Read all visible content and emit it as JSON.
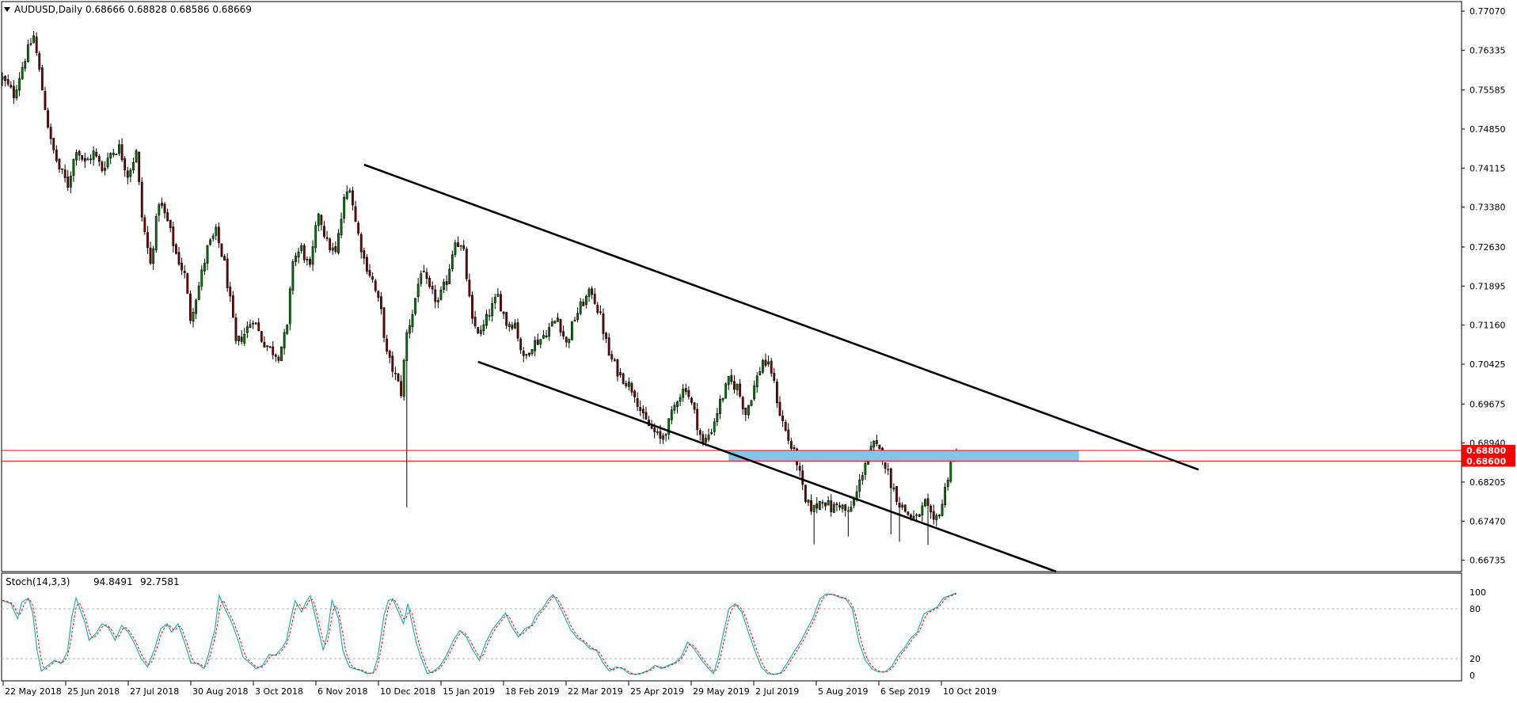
{
  "chart_data": {
    "type": "candlestick",
    "symbol_title": "AUDUSD,Daily",
    "ohlc_readout": "0.68666 0.68828 0.68586 0.68669",
    "price_ticks": [
      "0.77070",
      "0.76335",
      "0.75585",
      "0.74850",
      "0.74115",
      "0.73380",
      "0.72630",
      "0.71895",
      "0.71160",
      "0.70425",
      "0.69675",
      "0.68940",
      "0.68205",
      "0.67470",
      "0.66735"
    ],
    "price_tick_values": [
      0.7707,
      0.76335,
      0.75585,
      0.7485,
      0.74115,
      0.7338,
      0.7263,
      0.71895,
      0.7116,
      0.70425,
      0.69675,
      0.6894,
      0.68205,
      0.6747,
      0.66735
    ],
    "price_range": [
      0.6652,
      0.7725
    ],
    "date_labels": [
      "22 May 2018",
      "25 Jun 2018",
      "27 Jul 2018",
      "30 Aug 2018",
      "3 Oct 2018",
      "6 Nov 2018",
      "10 Dec 2018",
      "15 Jan 2019",
      "18 Feb 2019",
      "22 Mar 2019",
      "25 Apr 2019",
      "29 May 2019",
      "2 Jul 2019",
      "5 Aug 2019",
      "6 Sep 2019",
      "10 Oct 2019"
    ],
    "horizontal_levels": [
      {
        "label": "0.68800",
        "value": 0.688,
        "color": "#ff0000"
      },
      {
        "label": "0.68600",
        "value": 0.686,
        "color": "#ff0000"
      }
    ],
    "zone": {
      "from": 0.686,
      "to": 0.688,
      "color": "#87c3e8"
    },
    "trendlines": [
      {
        "name": "upper",
        "from": {
          "bar": 0,
          "price": 0.7418
        },
        "to": {
          "bar": 1,
          "price": 0.6844
        }
      },
      {
        "name": "lower",
        "from": {
          "bar": 0,
          "price": 0.7047
        },
        "to": {
          "bar": 1,
          "price": 0.6652
        }
      }
    ],
    "close_path": [
      [
        0,
        0.758
      ],
      [
        4,
        0.755
      ],
      [
        8,
        0.762
      ],
      [
        11,
        0.766
      ],
      [
        14,
        0.756
      ],
      [
        17,
        0.746
      ],
      [
        20,
        0.741
      ],
      [
        23,
        0.738
      ],
      [
        26,
        0.745
      ],
      [
        29,
        0.742
      ],
      [
        32,
        0.744
      ],
      [
        35,
        0.741
      ],
      [
        38,
        0.744
      ],
      [
        41,
        0.745
      ],
      [
        44,
        0.74
      ],
      [
        47,
        0.744
      ],
      [
        49,
        0.732
      ],
      [
        52,
        0.723
      ],
      [
        55,
        0.735
      ],
      [
        58,
        0.731
      ],
      [
        61,
        0.725
      ],
      [
        64,
        0.721
      ],
      [
        66,
        0.713
      ],
      [
        69,
        0.719
      ],
      [
        72,
        0.726
      ],
      [
        75,
        0.729
      ],
      [
        78,
        0.723
      ],
      [
        80,
        0.716
      ],
      [
        82,
        0.708
      ],
      [
        85,
        0.71
      ],
      [
        88,
        0.713
      ],
      [
        91,
        0.709
      ],
      [
        94,
        0.707
      ],
      [
        97,
        0.706
      ],
      [
        100,
        0.711
      ],
      [
        102,
        0.724
      ],
      [
        105,
        0.726
      ],
      [
        108,
        0.722
      ],
      [
        111,
        0.733
      ],
      [
        114,
        0.727
      ],
      [
        117,
        0.725
      ],
      [
        120,
        0.735
      ],
      [
        122,
        0.738
      ],
      [
        124,
        0.731
      ],
      [
        127,
        0.724
      ],
      [
        130,
        0.72
      ],
      [
        133,
        0.714
      ],
      [
        135,
        0.706
      ],
      [
        138,
        0.702
      ],
      [
        140,
        0.699
      ],
      [
        142,
        0.71
      ],
      [
        144,
        0.714
      ],
      [
        147,
        0.722
      ],
      [
        150,
        0.718
      ],
      [
        153,
        0.716
      ],
      [
        156,
        0.72
      ],
      [
        159,
        0.728
      ],
      [
        162,
        0.725
      ],
      [
        165,
        0.712
      ],
      [
        168,
        0.71
      ],
      [
        171,
        0.714
      ],
      [
        174,
        0.717
      ],
      [
        177,
        0.712
      ],
      [
        180,
        0.712
      ],
      [
        183,
        0.705
      ],
      [
        186,
        0.708
      ],
      [
        189,
        0.709
      ],
      [
        192,
        0.711
      ],
      [
        195,
        0.713
      ],
      [
        198,
        0.708
      ],
      [
        201,
        0.713
      ],
      [
        204,
        0.716
      ],
      [
        207,
        0.718
      ],
      [
        210,
        0.713
      ],
      [
        213,
        0.706
      ],
      [
        216,
        0.703
      ],
      [
        219,
        0.701
      ],
      [
        222,
        0.699
      ],
      [
        225,
        0.694
      ],
      [
        228,
        0.692
      ],
      [
        231,
        0.69
      ],
      [
        234,
        0.693
      ],
      [
        237,
        0.698
      ],
      [
        240,
        0.7
      ],
      [
        243,
        0.695
      ],
      [
        246,
        0.689
      ],
      [
        249,
        0.692
      ],
      [
        252,
        0.697
      ],
      [
        255,
        0.701
      ],
      [
        258,
        0.7
      ],
      [
        261,
        0.695
      ],
      [
        264,
        0.7
      ],
      [
        267,
        0.705
      ],
      [
        270,
        0.703
      ],
      [
        273,
        0.695
      ],
      [
        276,
        0.69
      ],
      [
        279,
        0.686
      ],
      [
        282,
        0.678
      ],
      [
        285,
        0.677
      ],
      [
        288,
        0.679
      ],
      [
        291,
        0.677
      ],
      [
        294,
        0.678
      ],
      [
        297,
        0.676
      ],
      [
        300,
        0.68
      ],
      [
        303,
        0.686
      ],
      [
        306,
        0.689
      ],
      [
        309,
        0.687
      ],
      [
        312,
        0.682
      ],
      [
        315,
        0.678
      ],
      [
        318,
        0.676
      ],
      [
        321,
        0.675
      ],
      [
        324,
        0.678
      ],
      [
        327,
        0.674
      ],
      [
        330,
        0.678
      ],
      [
        333,
        0.686
      ],
      [
        335,
        0.6867
      ]
    ],
    "indicator": {
      "label": "Stoch(14,3,3)",
      "value_main": "94.8491",
      "value_signal": "92.7581",
      "ticks": [
        "100",
        "80",
        "20",
        "0"
      ],
      "tick_values": [
        100,
        80,
        20,
        0
      ],
      "levels": [
        80,
        20
      ],
      "k_path": [
        [
          0,
          90
        ],
        [
          4,
          86
        ],
        [
          7,
          68
        ],
        [
          9,
          88
        ],
        [
          12,
          93
        ],
        [
          14,
          75
        ],
        [
          16,
          30
        ],
        [
          18,
          5
        ],
        [
          21,
          12
        ],
        [
          24,
          18
        ],
        [
          27,
          14
        ],
        [
          30,
          28
        ],
        [
          32,
          70
        ],
        [
          34,
          93
        ],
        [
          36,
          78
        ],
        [
          38,
          64
        ],
        [
          40,
          42
        ],
        [
          43,
          50
        ],
        [
          46,
          62
        ],
        [
          49,
          57
        ],
        [
          52,
          42
        ],
        [
          55,
          60
        ],
        [
          58,
          52
        ],
        [
          61,
          38
        ],
        [
          64,
          20
        ],
        [
          67,
          10
        ],
        [
          70,
          30
        ],
        [
          73,
          56
        ],
        [
          76,
          62
        ],
        [
          78,
          52
        ],
        [
          81,
          62
        ],
        [
          84,
          40
        ],
        [
          87,
          15
        ],
        [
          90,
          14
        ],
        [
          93,
          8
        ],
        [
          95,
          25
        ],
        [
          98,
          55
        ],
        [
          100,
          96
        ],
        [
          103,
          78
        ],
        [
          106,
          62
        ],
        [
          109,
          40
        ],
        [
          111,
          22
        ],
        [
          114,
          15
        ],
        [
          117,
          8
        ],
        [
          120,
          12
        ],
        [
          123,
          25
        ],
        [
          126,
          24
        ],
        [
          129,
          33
        ],
        [
          131,
          42
        ],
        [
          133,
          68
        ],
        [
          135,
          90
        ],
        [
          138,
          76
        ],
        [
          140,
          88
        ],
        [
          142,
          96
        ],
        [
          144,
          74
        ],
        [
          146,
          52
        ],
        [
          148,
          30
        ],
        [
          150,
          52
        ],
        [
          152,
          91
        ],
        [
          155,
          68
        ],
        [
          157,
          30
        ],
        [
          160,
          10
        ],
        [
          162,
          8
        ],
        [
          165,
          6
        ],
        [
          168,
          2
        ],
        [
          171,
          3
        ],
        [
          173,
          20
        ],
        [
          176,
          72
        ],
        [
          178,
          90
        ],
        [
          180,
          92
        ],
        [
          182,
          80
        ],
        [
          185,
          62
        ],
        [
          187,
          86
        ],
        [
          189,
          62
        ],
        [
          191,
          38
        ],
        [
          193,
          22
        ],
        [
          196,
          2
        ],
        [
          199,
          5
        ],
        [
          202,
          12
        ],
        [
          205,
          25
        ],
        [
          208,
          42
        ],
        [
          211,
          54
        ],
        [
          214,
          46
        ],
        [
          217,
          30
        ],
        [
          220,
          18
        ],
        [
          223,
          40
        ],
        [
          226,
          55
        ],
        [
          229,
          65
        ],
        [
          232,
          75
        ],
        [
          235,
          58
        ],
        [
          238,
          46
        ],
        [
          241,
          56
        ],
        [
          244,
          60
        ],
        [
          246,
          72
        ],
        [
          249,
          80
        ],
        [
          252,
          92
        ],
        [
          254,
          97
        ],
        [
          256,
          88
        ],
        [
          259,
          72
        ],
        [
          262,
          55
        ],
        [
          265,
          45
        ],
        [
          268,
          40
        ],
        [
          271,
          32
        ],
        [
          274,
          30
        ],
        [
          277,
          15
        ],
        [
          280,
          5
        ],
        [
          283,
          10
        ],
        [
          286,
          8
        ],
        [
          289,
          2
        ],
        [
          292,
          1
        ],
        [
          295,
          3
        ],
        [
          298,
          6
        ],
        [
          301,
          12
        ],
        [
          304,
          8
        ],
        [
          307,
          12
        ],
        [
          310,
          15
        ],
        [
          313,
          22
        ],
        [
          316,
          40
        ],
        [
          319,
          32
        ],
        [
          322,
          20
        ],
        [
          325,
          10
        ],
        [
          328,
          2
        ],
        [
          330,
          20
        ],
        [
          333,
          56
        ],
        [
          335,
          80
        ],
        [
          338,
          86
        ],
        [
          341,
          76
        ],
        [
          344,
          52
        ],
        [
          347,
          30
        ],
        [
          350,
          10
        ],
        [
          353,
          2
        ],
        [
          356,
          1
        ],
        [
          359,
          3
        ],
        [
          362,
          15
        ],
        [
          365,
          28
        ],
        [
          368,
          40
        ],
        [
          371,
          55
        ],
        [
          374,
          70
        ],
        [
          377,
          92
        ],
        [
          380,
          98
        ],
        [
          383,
          97
        ],
        [
          386,
          94
        ],
        [
          389,
          92
        ],
        [
          392,
          80
        ],
        [
          395,
          40
        ],
        [
          398,
          18
        ],
        [
          401,
          8
        ],
        [
          404,
          4
        ],
        [
          407,
          4
        ],
        [
          410,
          10
        ],
        [
          413,
          24
        ],
        [
          416,
          33
        ],
        [
          419,
          45
        ],
        [
          422,
          52
        ],
        [
          425,
          74
        ],
        [
          428,
          78
        ],
        [
          431,
          82
        ],
        [
          434,
          93
        ],
        [
          437,
          96
        ],
        [
          440,
          99
        ]
      ]
    }
  }
}
